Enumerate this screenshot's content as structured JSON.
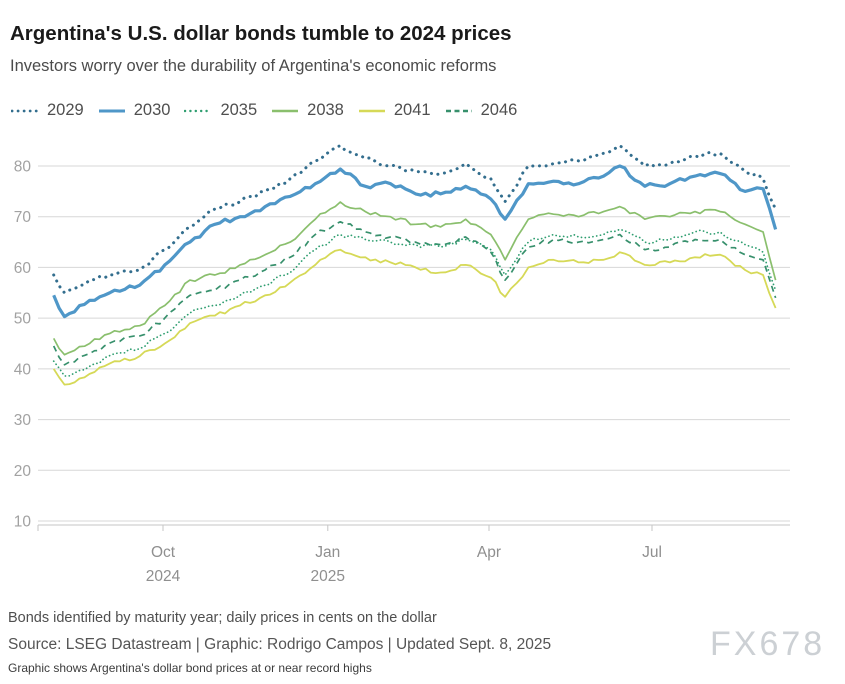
{
  "page": {
    "title": "Argentina's U.S. dollar bonds tumble to 2024 prices",
    "subtitle": "Investors worry over the durability of Argentina's economic reforms",
    "footnote": "Bonds identified by maturity year; daily prices in cents on the dollar",
    "source_line": "Source: LSEG Datastream | Graphic: Rodrigo Campos | Updated Sept. 8, 2025",
    "graphic_note": "Graphic shows Argentina's dollar bond prices at or near record highs",
    "watermark": "FX678"
  },
  "chart_data": {
    "type": "line",
    "title": "Argentina's U.S. dollar bonds tumble to 2024 prices",
    "subtitle": "Investors worry over the durability of Argentina's economic reforms",
    "note": "Bonds identified by maturity year; daily prices in cents on the dollar",
    "unit": "cents on the dollar",
    "grid": "horizontal",
    "legend_position": "top",
    "ylim": [
      10,
      85
    ],
    "yticks": [
      10,
      20,
      30,
      40,
      50,
      60,
      70,
      80
    ],
    "xticks": [
      {
        "label": "Oct",
        "sublabel": "2024",
        "date": "2024-10-01"
      },
      {
        "label": "Jan",
        "sublabel": "2025",
        "date": "2025-01-01"
      },
      {
        "label": "Apr",
        "sublabel": "",
        "date": "2025-04-01"
      },
      {
        "label": "Jul",
        "sublabel": "",
        "date": "2025-07-01"
      }
    ],
    "x": [
      "2024-08-01",
      "2024-08-07",
      "2024-08-21",
      "2024-09-04",
      "2024-09-18",
      "2024-10-02",
      "2024-10-16",
      "2024-10-30",
      "2024-11-13",
      "2024-11-27",
      "2024-12-11",
      "2024-12-25",
      "2025-01-08",
      "2025-01-22",
      "2025-02-05",
      "2025-02-19",
      "2025-03-05",
      "2025-03-19",
      "2025-04-02",
      "2025-04-10",
      "2025-04-23",
      "2025-05-07",
      "2025-05-21",
      "2025-06-04",
      "2025-06-13",
      "2025-06-27",
      "2025-07-11",
      "2025-07-25",
      "2025-08-08",
      "2025-08-22",
      "2025-09-01",
      "2025-09-08"
    ],
    "series": [
      {
        "name": "2029",
        "color": "#336e8e",
        "style": "dotted",
        "width": 3,
        "values": [
          58.5,
          55,
          57.5,
          58.5,
          59.5,
          63.5,
          68,
          71.5,
          73,
          75,
          77.5,
          81,
          84,
          81.5,
          80,
          79,
          78.5,
          80.5,
          77.5,
          73,
          80,
          80.5,
          81,
          82.5,
          84,
          80,
          80.5,
          82,
          82.5,
          79,
          77.5,
          71.5
        ]
      },
      {
        "name": "2030",
        "color": "#4f97c8",
        "style": "solid",
        "width": 3.2,
        "values": [
          54.5,
          50.3,
          53.5,
          55.5,
          56.5,
          60.5,
          65,
          68.5,
          70,
          72,
          74,
          76.5,
          79.4,
          76,
          76.5,
          74.5,
          74.5,
          76,
          73.5,
          69.5,
          76.5,
          77,
          76.5,
          78,
          80,
          76,
          76.5,
          78,
          78.5,
          75,
          75.5,
          67.5
        ]
      },
      {
        "name": "2035",
        "color": "#2f9e70",
        "style": "dotted",
        "width": 1.7,
        "values": [
          41.5,
          38.6,
          40.5,
          43,
          44,
          47,
          51,
          52.5,
          54.5,
          56.5,
          59,
          63.5,
          66.5,
          65.5,
          65,
          64.5,
          64,
          65.5,
          63.5,
          58.5,
          65,
          66.5,
          66,
          66.5,
          67.5,
          65,
          65.5,
          67,
          67,
          64.5,
          63,
          55.5
        ]
      },
      {
        "name": "2038",
        "color": "#8abf6d",
        "style": "solid",
        "width": 1.7,
        "values": [
          46,
          42.8,
          45,
          47.5,
          48.5,
          52.5,
          57.5,
          58.5,
          60.5,
          62.5,
          65,
          69.5,
          72.9,
          71,
          70,
          68.5,
          68,
          69.5,
          66.5,
          61.5,
          69.5,
          70.5,
          70,
          71,
          72,
          69.5,
          70,
          71,
          71,
          68.5,
          67,
          57.5
        ]
      },
      {
        "name": "2041",
        "color": "#d6d957",
        "style": "solid",
        "width": 1.8,
        "values": [
          40,
          36.9,
          39,
          41.5,
          42.5,
          45,
          49,
          50.5,
          52.5,
          54.5,
          57,
          60.5,
          63.5,
          62,
          61,
          60,
          59,
          60.5,
          58,
          54.2,
          60,
          61.5,
          61,
          61.5,
          63,
          60.5,
          61,
          62,
          62.5,
          59.5,
          58.5,
          52
        ]
      },
      {
        "name": "2046",
        "color": "#37906c",
        "style": "dashed",
        "width": 1.7,
        "values": [
          44.5,
          40.8,
          43,
          45.5,
          46.5,
          50,
          54.5,
          55.5,
          57.5,
          59.5,
          62,
          66.5,
          69,
          67,
          66,
          65,
          64.5,
          66,
          63,
          57.5,
          64,
          65.5,
          65,
          65.5,
          66.5,
          63.5,
          64,
          65.5,
          65.5,
          62.5,
          61.5,
          54
        ]
      }
    ]
  }
}
